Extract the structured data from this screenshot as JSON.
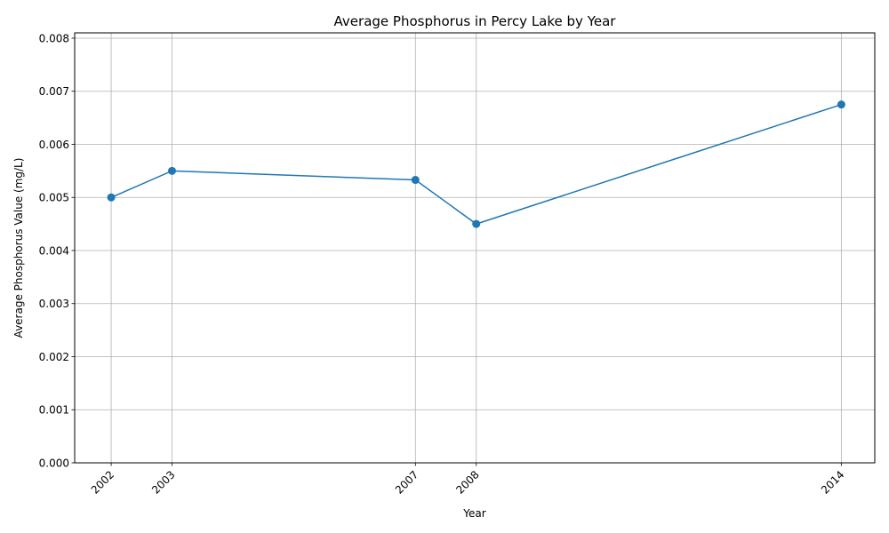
{
  "chart_data": {
    "type": "line",
    "title": "Average Phosphorus in Percy Lake by Year",
    "xlabel": "Year",
    "ylabel": "Average Phosphorus Value (mg/L)",
    "x": [
      2002,
      2003,
      2007,
      2008,
      2014
    ],
    "x_tick_labels": [
      "2002",
      "2003",
      "2007",
      "2008",
      "2014"
    ],
    "series": [
      {
        "values": [
          0.005,
          0.0055,
          0.00533,
          0.0045,
          0.00675
        ],
        "color": "#1f77b4",
        "marker": "circle"
      }
    ],
    "xlim": [
      2001.4,
      2014.55
    ],
    "ylim": [
      0,
      0.0081
    ],
    "y_ticks": [
      0,
      0.001,
      0.002,
      0.003,
      0.004,
      0.005,
      0.006,
      0.007,
      0.008
    ],
    "y_tick_labels": [
      "0.000",
      "0.001",
      "0.002",
      "0.003",
      "0.004",
      "0.005",
      "0.006",
      "0.007",
      "0.008"
    ],
    "grid": true,
    "x_tick_rotation": "45°, right-aligned"
  }
}
